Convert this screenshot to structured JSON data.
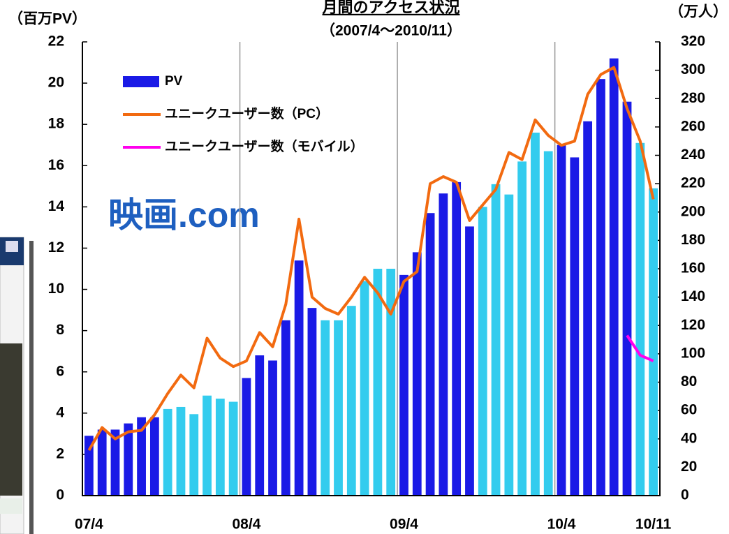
{
  "chart_data": {
    "type": "bar-line",
    "title": "月間のアクセス状況",
    "subtitle": "（2007/4～2010/11）",
    "y_label": "（百万PV）",
    "y2_label": "（万人）",
    "logo": "映画.com",
    "categories": [
      "07/4",
      null,
      null,
      null,
      null,
      null,
      null,
      null,
      null,
      null,
      null,
      null,
      "08/4",
      null,
      null,
      null,
      null,
      null,
      null,
      null,
      null,
      null,
      null,
      null,
      "09/4",
      null,
      null,
      null,
      null,
      null,
      null,
      null,
      null,
      null,
      null,
      null,
      "10/4",
      null,
      null,
      null,
      null,
      null,
      null,
      "10/11"
    ],
    "ylim": [
      0,
      22
    ],
    "yticks": [
      0,
      2,
      4,
      6,
      8,
      10,
      12,
      14,
      16,
      18,
      20,
      22
    ],
    "y2lim": [
      0,
      320
    ],
    "y2ticks": [
      0,
      20,
      40,
      60,
      80,
      100,
      120,
      140,
      160,
      180,
      200,
      220,
      240,
      260,
      280,
      300,
      320
    ],
    "grid": "x",
    "legend": "upper left",
    "series": [
      {
        "name": "PV",
        "type": "bar",
        "color": "#1a1ae6",
        "colors": [
          "#1a1ae6",
          "#1a1ae6",
          "#1a1ae6",
          "#1a1ae6",
          "#1a1ae6",
          "#1a1ae6",
          "#33ccee",
          "#33ccee",
          "#33ccee",
          "#33ccee",
          "#33ccee",
          "#33ccee",
          "#1a1ae6",
          "#1a1ae6",
          "#1a1ae6",
          "#1a1ae6",
          "#1a1ae6",
          "#1a1ae6",
          "#33ccee",
          "#33ccee",
          "#33ccee",
          "#33ccee",
          "#33ccee",
          "#33ccee",
          "#1a1ae6",
          "#1a1ae6",
          "#1a1ae6",
          "#1a1ae6",
          "#1a1ae6",
          "#1a1ae6",
          "#33ccee",
          "#33ccee",
          "#33ccee",
          "#33ccee",
          "#33ccee",
          "#33ccee",
          "#1a1ae6",
          "#1a1ae6",
          "#1a1ae6",
          "#1a1ae6",
          "#1a1ae6",
          "#1a1ae6",
          "#33ccee",
          "#33ccee"
        ],
        "values": [
          2.9,
          3.2,
          3.2,
          3.5,
          3.8,
          3.8,
          4.2,
          4.3,
          3.95,
          4.85,
          4.7,
          4.55,
          5.7,
          6.8,
          6.55,
          8.5,
          11.4,
          9.1,
          8.5,
          8.5,
          9.2,
          10.4,
          11.0,
          11.0,
          10.7,
          11.8,
          13.7,
          14.65,
          15.2,
          13.05,
          14.0,
          15.1,
          14.6,
          16.2,
          17.6,
          16.7,
          17.0,
          16.4,
          18.15,
          20.2,
          21.2,
          19.1,
          17.1,
          14.9
        ]
      },
      {
        "name": "ユニークユーザー数（PC）",
        "type": "line",
        "axis": "y2",
        "color": "#f26a10",
        "values": [
          32,
          48,
          40,
          45,
          46,
          57,
          72,
          85,
          76,
          111,
          97,
          91,
          95,
          115,
          105,
          135,
          195,
          140,
          132,
          128,
          140,
          154,
          143,
          128,
          151,
          158,
          220,
          225,
          221,
          194,
          205,
          216,
          242,
          237,
          265,
          254,
          247,
          250,
          283,
          297,
          302,
          273,
          250,
          209
        ]
      },
      {
        "name": "ユニークユーザー数（モバイル）",
        "type": "line",
        "axis": "y2",
        "color": "#ff00ee",
        "values": [
          null,
          null,
          null,
          null,
          null,
          null,
          null,
          null,
          null,
          null,
          null,
          null,
          null,
          null,
          null,
          null,
          null,
          null,
          null,
          null,
          null,
          null,
          null,
          null,
          null,
          null,
          null,
          null,
          null,
          null,
          null,
          null,
          null,
          null,
          null,
          null,
          null,
          null,
          null,
          null,
          null,
          113,
          99,
          95
        ]
      }
    ]
  }
}
